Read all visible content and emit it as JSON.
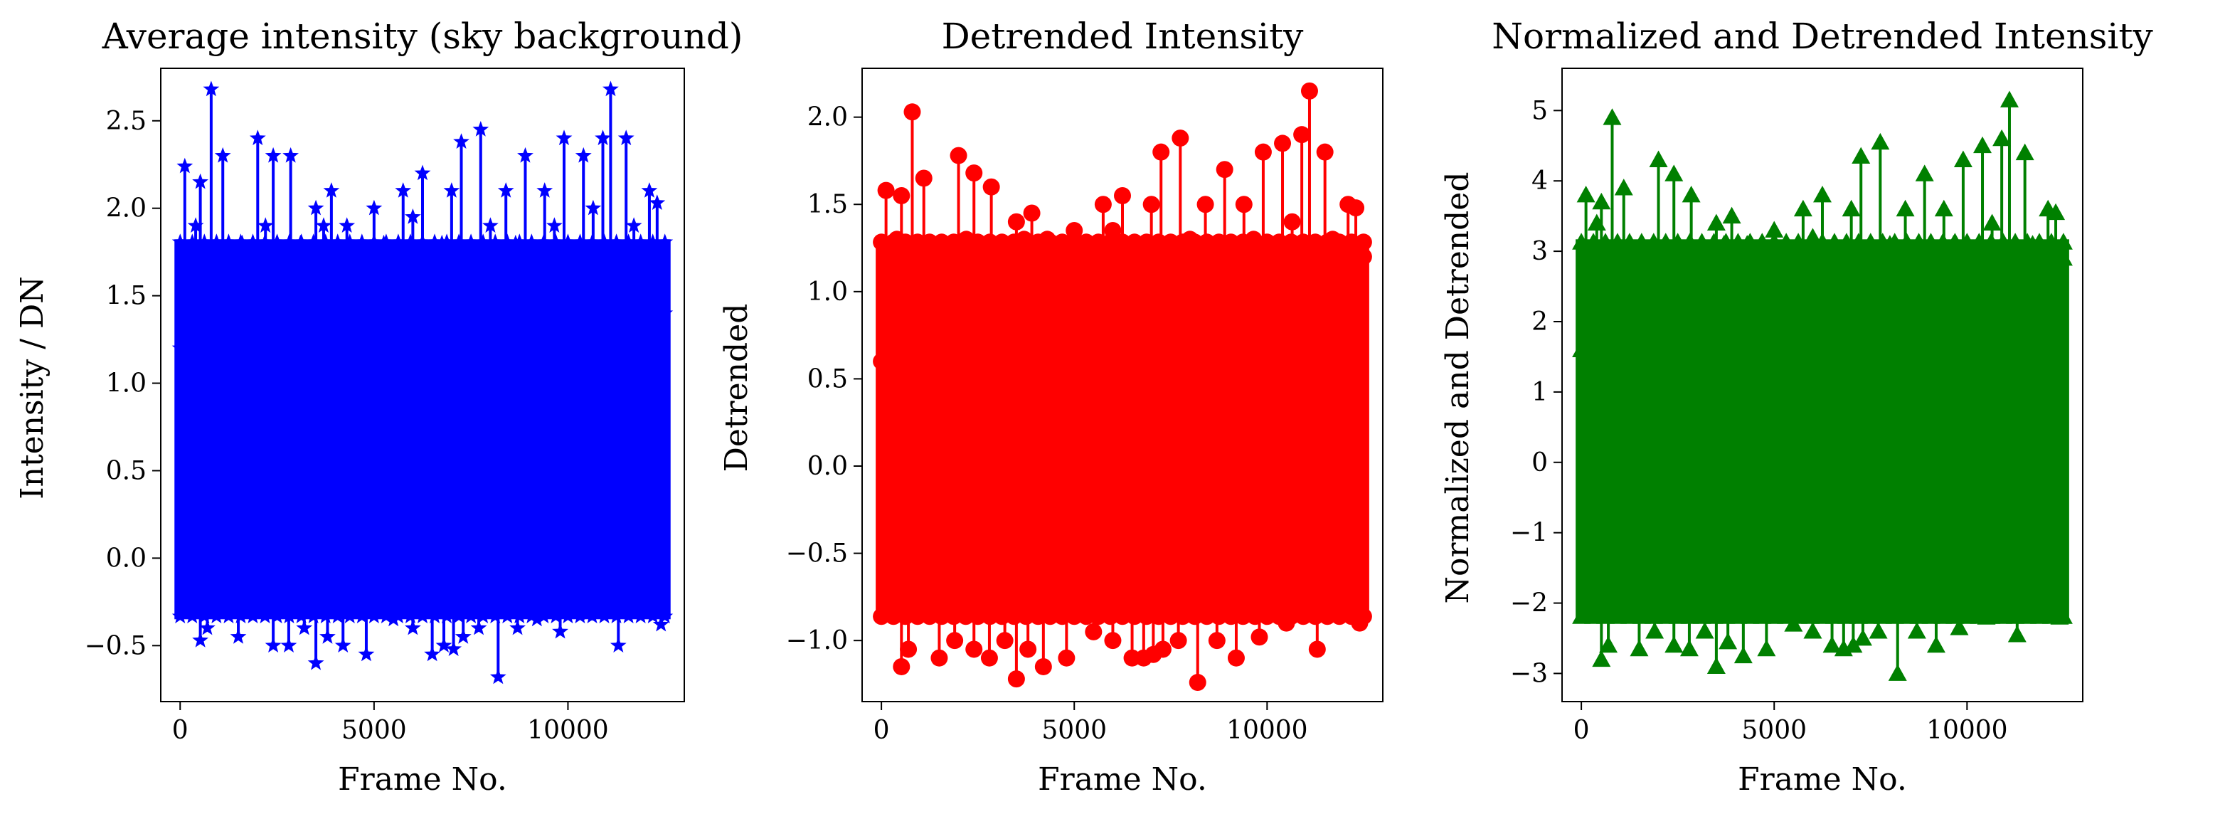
{
  "figure": {
    "panels": [
      {
        "color": "#0000ff",
        "marker": "star"
      },
      {
        "color": "#ff0000",
        "marker": "circle"
      },
      {
        "color": "#008000",
        "marker": "triangle"
      }
    ]
  },
  "chart_data": [
    {
      "type": "line",
      "title": "Average intensity (sky background)",
      "xlabel": "Frame No.",
      "ylabel": "Intensity / DN",
      "xlim": [
        -500,
        13000
      ],
      "ylim": [
        -0.82,
        2.8
      ],
      "xticks": [
        0,
        5000,
        10000
      ],
      "xtick_labels": [
        "0",
        "5000",
        "10000"
      ],
      "yticks": [
        -0.5,
        0.0,
        0.5,
        1.0,
        1.5,
        2.0,
        2.5
      ],
      "ytick_labels": [
        "−0.5",
        "0.0",
        "0.5",
        "1.0",
        "1.5",
        "2.0",
        "2.5"
      ],
      "grid": false,
      "series": [
        {
          "x": [
            0,
            120,
            260,
            400,
            520,
            650,
            800,
            950,
            1100,
            1250,
            1450,
            1600,
            1800,
            2000,
            2200,
            2400,
            2600,
            2850,
            3100,
            3300,
            3500,
            3700,
            3900,
            4100,
            4300,
            4500,
            4750,
            5000,
            5250,
            5500,
            5750,
            6000,
            6250,
            6500,
            6750,
            7000,
            7250,
            7500,
            7750,
            8000,
            8200,
            8400,
            8650,
            8900,
            9150,
            9400,
            9650,
            9900,
            10150,
            10400,
            10650,
            10900,
            11100,
            11300,
            11500,
            11700,
            11900,
            12100,
            12300,
            12500
          ],
          "y": [
            1.2,
            2.24,
            0.5,
            1.9,
            2.15,
            0.1,
            2.68,
            1.5,
            2.3,
            0.3,
            1.6,
            1.8,
            0.2,
            2.4,
            1.9,
            2.3,
            0.4,
            2.3,
            1.8,
            0.2,
            2.0,
            1.9,
            2.1,
            0.5,
            1.9,
            1.7,
            0.3,
            2.0,
            1.8,
            0.4,
            2.1,
            1.95,
            2.2,
            0.5,
            1.8,
            2.1,
            2.38,
            0.3,
            2.45,
            1.9,
            0.4,
            2.1,
            1.8,
            2.3,
            0.5,
            2.1,
            1.9,
            2.4,
            0.2,
            2.3,
            2.0,
            2.4,
            2.68,
            0.6,
            2.4,
            1.9,
            0.3,
            2.1,
            2.03,
            1.4
          ],
          "low_x": [
            520,
            700,
            1500,
            1900,
            2400,
            2800,
            3200,
            3500,
            3800,
            4200,
            4800,
            5500,
            6000,
            6500,
            6800,
            7050,
            7300,
            7700,
            8200,
            8700,
            9200,
            9800,
            10500,
            11300,
            12400
          ],
          "low_y": [
            -0.47,
            -0.4,
            -0.45,
            -0.3,
            -0.5,
            -0.5,
            -0.4,
            -0.6,
            -0.45,
            -0.5,
            -0.55,
            -0.35,
            -0.4,
            -0.55,
            -0.5,
            -0.52,
            -0.45,
            -0.4,
            -0.68,
            -0.4,
            -0.35,
            -0.42,
            -0.32,
            -0.5,
            -0.38
          ]
        }
      ]
    },
    {
      "type": "line",
      "title": "Detrended Intensity",
      "xlabel": "Frame No.",
      "ylabel": "Detrended",
      "xlim": [
        -500,
        13000
      ],
      "ylim": [
        -1.35,
        2.28
      ],
      "xticks": [
        0,
        5000,
        10000
      ],
      "xtick_labels": [
        "0",
        "5000",
        "10000"
      ],
      "yticks": [
        -1.0,
        -0.5,
        0.0,
        0.5,
        1.0,
        1.5,
        2.0
      ],
      "ytick_labels": [
        "−1.0",
        "−0.5",
        "0.0",
        "0.5",
        "1.0",
        "1.5",
        "2.0"
      ],
      "grid": false,
      "series": [
        {
          "x": [
            0,
            120,
            260,
            400,
            520,
            650,
            800,
            950,
            1100,
            1250,
            1450,
            1600,
            1800,
            2000,
            2200,
            2400,
            2600,
            2850,
            3100,
            3300,
            3500,
            3700,
            3900,
            4100,
            4300,
            4500,
            4750,
            5000,
            5250,
            5500,
            5750,
            6000,
            6250,
            6500,
            6750,
            7000,
            7250,
            7500,
            7750,
            8000,
            8200,
            8400,
            8650,
            8900,
            9150,
            9400,
            9650,
            9900,
            10150,
            10400,
            10650,
            10900,
            11100,
            11300,
            11500,
            11700,
            11900,
            12100,
            12300,
            12500
          ],
          "y": [
            0.6,
            1.58,
            -0.1,
            1.3,
            1.55,
            -0.4,
            2.03,
            0.9,
            1.65,
            -0.3,
            1.0,
            1.2,
            -0.4,
            1.78,
            1.3,
            1.68,
            -0.2,
            1.6,
            1.15,
            -0.4,
            1.4,
            1.3,
            1.45,
            -0.1,
            1.3,
            1.1,
            -0.3,
            1.35,
            1.2,
            -0.2,
            1.5,
            1.35,
            1.55,
            -0.1,
            1.2,
            1.5,
            1.8,
            -0.3,
            1.88,
            1.3,
            -0.2,
            1.5,
            1.2,
            1.7,
            -0.1,
            1.5,
            1.3,
            1.8,
            -0.4,
            1.85,
            1.4,
            1.9,
            2.15,
            0.0,
            1.8,
            1.3,
            -0.3,
            1.5,
            1.48,
            1.2
          ],
          "low_x": [
            520,
            700,
            1500,
            1900,
            2400,
            2800,
            3200,
            3500,
            3800,
            4200,
            4800,
            5500,
            6000,
            6500,
            6800,
            7050,
            7300,
            7700,
            8200,
            8700,
            9200,
            9800,
            10500,
            11300,
            12400
          ],
          "low_y": [
            -1.15,
            -1.05,
            -1.1,
            -1.0,
            -1.05,
            -1.1,
            -1.0,
            -1.22,
            -1.05,
            -1.15,
            -1.1,
            -0.95,
            -1.0,
            -1.1,
            -1.1,
            -1.08,
            -1.05,
            -1.0,
            -1.24,
            -1.0,
            -1.1,
            -0.98,
            -0.9,
            -1.05,
            -0.9
          ]
        }
      ]
    },
    {
      "type": "line",
      "title": "Normalized and Detrended Intensity",
      "xlabel": "Frame No.",
      "ylabel": "Normalized and Detrended",
      "xlim": [
        -500,
        13000
      ],
      "ylim": [
        -3.4,
        5.6
      ],
      "xticks": [
        0,
        5000,
        10000
      ],
      "xtick_labels": [
        "0",
        "5000",
        "10000"
      ],
      "yticks": [
        -3,
        -2,
        -1,
        0,
        1,
        2,
        3,
        4,
        5
      ],
      "ytick_labels": [
        "−3",
        "−2",
        "−1",
        "0",
        "1",
        "2",
        "3",
        "4",
        "5"
      ],
      "grid": false,
      "series": [
        {
          "x": [
            0,
            120,
            260,
            400,
            520,
            650,
            800,
            950,
            1100,
            1250,
            1450,
            1600,
            1800,
            2000,
            2200,
            2400,
            2600,
            2850,
            3100,
            3300,
            3500,
            3700,
            3900,
            4100,
            4300,
            4500,
            4750,
            5000,
            5250,
            5500,
            5750,
            6000,
            6250,
            6500,
            6750,
            7000,
            7250,
            7500,
            7750,
            8000,
            8200,
            8400,
            8650,
            8900,
            9150,
            9400,
            9650,
            9900,
            10150,
            10400,
            10650,
            10900,
            11100,
            11300,
            11500,
            11700,
            11900,
            12100,
            12300,
            12500
          ],
          "y": [
            1.6,
            3.8,
            -0.2,
            3.4,
            3.7,
            -0.8,
            4.9,
            2.2,
            3.9,
            -0.6,
            2.4,
            2.8,
            -0.9,
            4.3,
            3.1,
            4.1,
            -0.5,
            3.8,
            2.7,
            -0.9,
            3.4,
            3.1,
            3.5,
            -0.3,
            3.1,
            2.6,
            -0.7,
            3.3,
            2.8,
            -0.5,
            3.6,
            3.2,
            3.8,
            -0.2,
            2.9,
            3.6,
            4.35,
            -0.6,
            4.55,
            3.1,
            -0.4,
            3.6,
            2.9,
            4.1,
            -0.3,
            3.6,
            3.1,
            4.3,
            -0.9,
            4.5,
            3.4,
            4.6,
            5.15,
            0.0,
            4.4,
            3.1,
            -0.6,
            3.6,
            3.55,
            2.9
          ],
          "low_x": [
            520,
            700,
            1500,
            1900,
            2400,
            2800,
            3200,
            3500,
            3800,
            4200,
            4800,
            5500,
            6000,
            6500,
            6800,
            7050,
            7300,
            7700,
            8200,
            8700,
            9200,
            9800,
            10500,
            11300,
            12400
          ],
          "low_y": [
            -2.8,
            -2.6,
            -2.65,
            -2.4,
            -2.6,
            -2.65,
            -2.4,
            -2.9,
            -2.55,
            -2.75,
            -2.65,
            -2.3,
            -2.4,
            -2.6,
            -2.65,
            -2.6,
            -2.5,
            -2.4,
            -3.0,
            -2.4,
            -2.6,
            -2.35,
            -2.2,
            -2.45,
            -2.2
          ]
        }
      ]
    }
  ]
}
